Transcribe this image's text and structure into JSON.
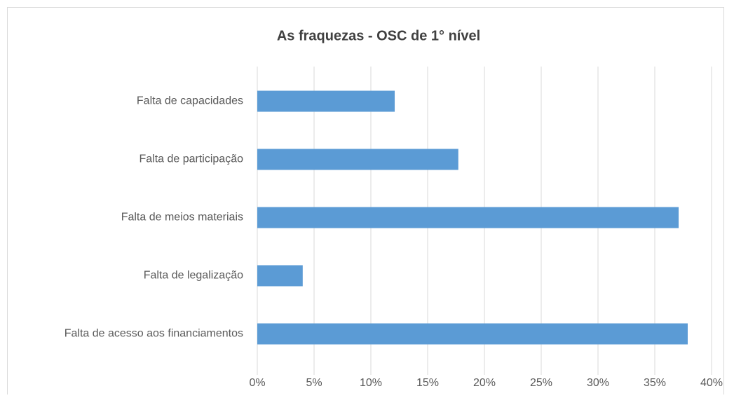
{
  "chart_data": {
    "type": "bar",
    "orientation": "horizontal",
    "title": "As fraquezas - OSC de 1° nível",
    "categories": [
      "Falta de capacidades",
      "Falta de participação",
      "Falta de meios materiais",
      "Falta de legalização",
      "Falta de acesso aos financiamentos"
    ],
    "values": [
      12.1,
      17.7,
      37.1,
      4.0,
      37.9
    ],
    "color": "#5b9bd5",
    "xlim": [
      0,
      40
    ],
    "xticks": [
      {
        "value": 0,
        "label": "0%"
      },
      {
        "value": 5,
        "label": "5%"
      },
      {
        "value": 10,
        "label": "10%"
      },
      {
        "value": 15,
        "label": "15%"
      },
      {
        "value": 20,
        "label": "20%"
      },
      {
        "value": 25,
        "label": "25%"
      },
      {
        "value": 30,
        "label": "30%"
      },
      {
        "value": 35,
        "label": "35%"
      },
      {
        "value": 40,
        "label": "40%"
      }
    ],
    "grid": true
  }
}
